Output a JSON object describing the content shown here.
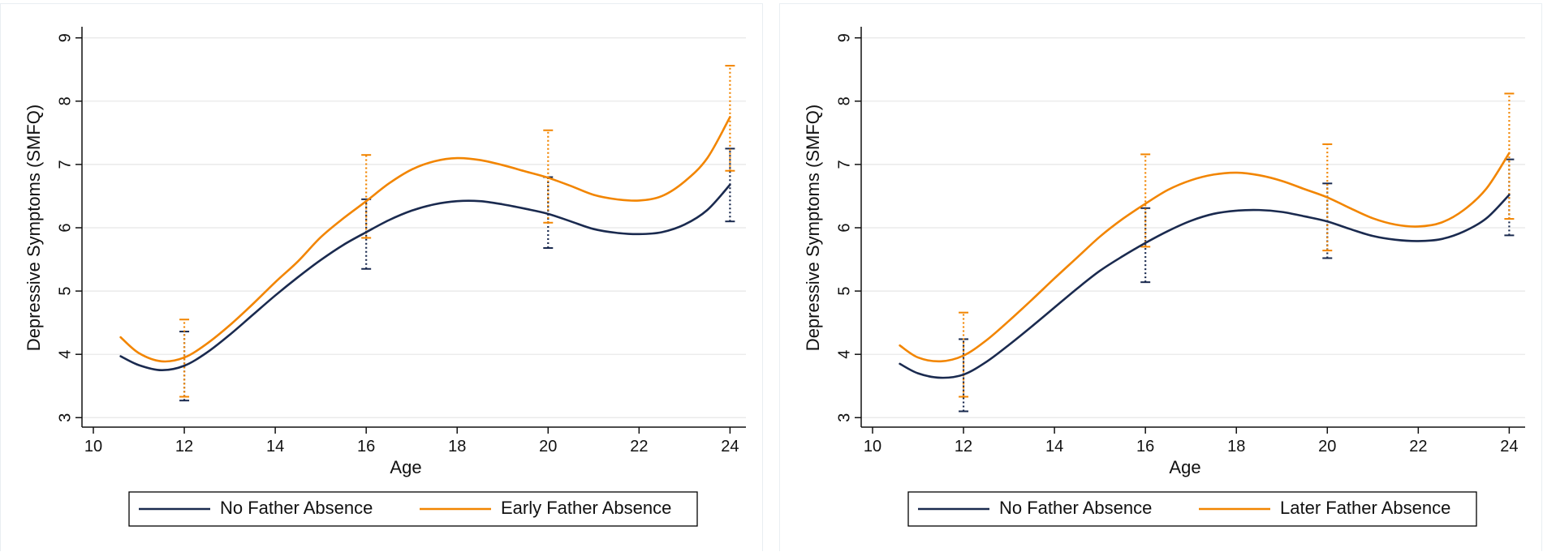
{
  "colors": {
    "no_absence": "#1a2a4f",
    "father_absence": "#f28500",
    "grid": "#e6e6e6",
    "axis": "#111111",
    "legend_border": "#000000"
  },
  "chart_data": [
    {
      "type": "line",
      "title": "",
      "xlabel": "Age",
      "ylabel": "Depressive Symptoms (SMFQ)",
      "xlim": [
        9.75,
        24.35
      ],
      "ylim": [
        2.85,
        9.15
      ],
      "xticks": [
        "10",
        "12",
        "14",
        "16",
        "18",
        "20",
        "22",
        "24"
      ],
      "yticks": [
        "3",
        "4",
        "5",
        "6",
        "7",
        "8",
        "9"
      ],
      "grid": true,
      "legend_position": "bottom",
      "legend": [
        "No Father Absence",
        "Early Father Absence"
      ],
      "series": [
        {
          "name": "No Father Absence",
          "color": "#1a2a4f",
          "x": [
            10.6,
            11.0,
            11.5,
            12.0,
            12.5,
            13.0,
            13.5,
            14.0,
            14.5,
            15.0,
            15.5,
            16.0,
            16.5,
            17.0,
            17.5,
            18.0,
            18.5,
            19.0,
            19.5,
            20.0,
            20.5,
            21.0,
            21.5,
            22.0,
            22.5,
            23.0,
            23.5,
            24.0
          ],
          "y": [
            3.97,
            3.83,
            3.75,
            3.82,
            4.03,
            4.31,
            4.62,
            4.93,
            5.22,
            5.49,
            5.73,
            5.93,
            6.12,
            6.27,
            6.37,
            6.42,
            6.42,
            6.37,
            6.3,
            6.22,
            6.1,
            5.98,
            5.92,
            5.9,
            5.93,
            6.05,
            6.28,
            6.68
          ],
          "ci": [
            {
              "x": 12,
              "lower": 3.27,
              "upper": 4.36
            },
            {
              "x": 16,
              "lower": 5.35,
              "upper": 6.45
            },
            {
              "x": 20,
              "lower": 5.68,
              "upper": 6.8
            },
            {
              "x": 24,
              "lower": 6.1,
              "upper": 7.25
            }
          ]
        },
        {
          "name": "Early Father Absence",
          "color": "#f28500",
          "x": [
            10.6,
            11.0,
            11.5,
            12.0,
            12.5,
            13.0,
            13.5,
            14.0,
            14.5,
            15.0,
            15.5,
            16.0,
            16.5,
            17.0,
            17.5,
            18.0,
            18.5,
            19.0,
            19.5,
            20.0,
            20.5,
            21.0,
            21.5,
            22.0,
            22.5,
            23.0,
            23.5,
            24.0
          ],
          "y": [
            4.27,
            4.02,
            3.89,
            3.95,
            4.17,
            4.46,
            4.79,
            5.14,
            5.47,
            5.85,
            6.15,
            6.42,
            6.7,
            6.92,
            7.05,
            7.1,
            7.07,
            6.99,
            6.89,
            6.79,
            6.66,
            6.52,
            6.45,
            6.43,
            6.5,
            6.73,
            7.1,
            7.75
          ],
          "ci": [
            {
              "x": 12,
              "lower": 3.33,
              "upper": 4.55
            },
            {
              "x": 16,
              "lower": 5.84,
              "upper": 7.15
            },
            {
              "x": 20,
              "lower": 6.08,
              "upper": 7.54
            },
            {
              "x": 24,
              "lower": 6.9,
              "upper": 8.56
            }
          ]
        }
      ]
    },
    {
      "type": "line",
      "title": "",
      "xlabel": "Age",
      "ylabel": "Depressive Symptoms (SMFQ)",
      "xlim": [
        9.75,
        24.35
      ],
      "ylim": [
        2.85,
        9.15
      ],
      "xticks": [
        "10",
        "12",
        "14",
        "16",
        "18",
        "20",
        "22",
        "24"
      ],
      "yticks": [
        "3",
        "4",
        "5",
        "6",
        "7",
        "8",
        "9"
      ],
      "grid": true,
      "legend_position": "bottom",
      "legend": [
        "No Father Absence",
        "Later Father Absence"
      ],
      "series": [
        {
          "name": "No Father Absence",
          "color": "#1a2a4f",
          "x": [
            10.6,
            11.0,
            11.5,
            12.0,
            12.5,
            13.0,
            13.5,
            14.0,
            14.5,
            15.0,
            15.5,
            16.0,
            16.5,
            17.0,
            17.5,
            18.0,
            18.5,
            19.0,
            19.5,
            20.0,
            20.5,
            21.0,
            21.5,
            22.0,
            22.5,
            23.0,
            23.5,
            24.0
          ],
          "y": [
            3.85,
            3.7,
            3.63,
            3.68,
            3.88,
            4.15,
            4.44,
            4.74,
            5.04,
            5.32,
            5.55,
            5.76,
            5.95,
            6.11,
            6.22,
            6.27,
            6.28,
            6.25,
            6.18,
            6.1,
            5.98,
            5.87,
            5.81,
            5.79,
            5.82,
            5.94,
            6.15,
            6.52
          ],
          "ci": [
            {
              "x": 12,
              "lower": 3.1,
              "upper": 4.24
            },
            {
              "x": 16,
              "lower": 5.14,
              "upper": 6.31
            },
            {
              "x": 20,
              "lower": 5.52,
              "upper": 6.7
            },
            {
              "x": 24,
              "lower": 5.88,
              "upper": 7.08
            }
          ]
        },
        {
          "name": "Later Father Absence",
          "color": "#f28500",
          "x": [
            10.6,
            11.0,
            11.5,
            12.0,
            12.5,
            13.0,
            13.5,
            14.0,
            14.5,
            15.0,
            15.5,
            16.0,
            16.5,
            17.0,
            17.5,
            18.0,
            18.5,
            19.0,
            19.5,
            20.0,
            20.5,
            21.0,
            21.5,
            22.0,
            22.5,
            23.0,
            23.5,
            24.0
          ],
          "y": [
            4.14,
            3.95,
            3.89,
            3.98,
            4.22,
            4.53,
            4.86,
            5.2,
            5.53,
            5.86,
            6.14,
            6.38,
            6.6,
            6.75,
            6.84,
            6.87,
            6.83,
            6.74,
            6.61,
            6.48,
            6.31,
            6.15,
            6.05,
            6.02,
            6.08,
            6.28,
            6.62,
            7.18
          ],
          "ci": [
            {
              "x": 12,
              "lower": 3.33,
              "upper": 4.66
            },
            {
              "x": 16,
              "lower": 5.7,
              "upper": 7.16
            },
            {
              "x": 20,
              "lower": 5.64,
              "upper": 7.32
            },
            {
              "x": 24,
              "lower": 6.14,
              "upper": 8.12
            }
          ]
        }
      ]
    }
  ]
}
